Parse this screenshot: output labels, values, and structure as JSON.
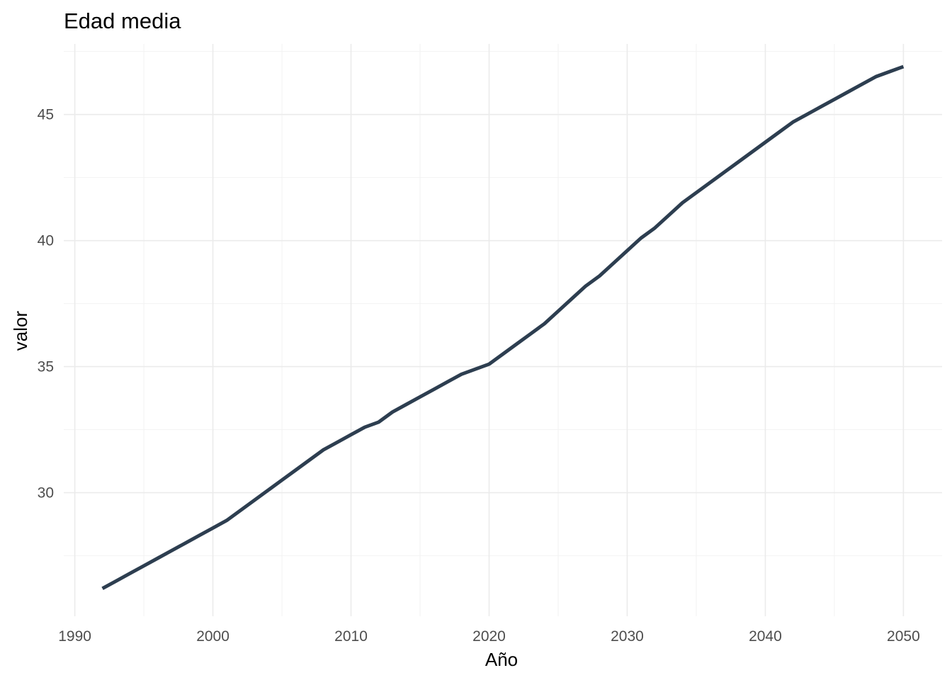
{
  "chart_data": {
    "type": "line",
    "title": "Edad media",
    "xlabel": "Año",
    "ylabel": "valor",
    "xlim": [
      1989.2,
      2052.8
    ],
    "ylim": [
      25.1,
      47.8
    ],
    "x_ticks": [
      1990,
      2000,
      2010,
      2020,
      2030,
      2040,
      2050
    ],
    "x_tick_labels": [
      "1990",
      "2000",
      "2010",
      "2020",
      "2030",
      "2040",
      "2050"
    ],
    "y_ticks": [
      30,
      35,
      40,
      45
    ],
    "y_tick_labels": [
      "30",
      "35",
      "40",
      "45"
    ],
    "x_minor_ticks": [
      1995,
      2005,
      2015,
      2025,
      2035,
      2045
    ],
    "y_minor_ticks": [
      27.5,
      32.5,
      37.5,
      42.5,
      47.5
    ],
    "grid": true,
    "legend": "none",
    "line_color": "#2d3e50",
    "series": [
      {
        "x": [
          1992,
          1993,
          1994,
          1995,
          1996,
          1997,
          1998,
          1999,
          2000,
          2001,
          2002,
          2003,
          2004,
          2005,
          2006,
          2007,
          2008,
          2009,
          2010,
          2011,
          2012,
          2013,
          2014,
          2015,
          2016,
          2017,
          2018,
          2019,
          2020,
          2021,
          2022,
          2023,
          2024,
          2025,
          2026,
          2027,
          2028,
          2029,
          2030,
          2031,
          2032,
          2033,
          2034,
          2035,
          2036,
          2037,
          2038,
          2039,
          2040,
          2041,
          2042,
          2043,
          2044,
          2045,
          2046,
          2047,
          2048,
          2049,
          2050
        ],
        "values": [
          26.2,
          26.5,
          26.8,
          27.1,
          27.4,
          27.7,
          28.0,
          28.3,
          28.6,
          28.9,
          29.3,
          29.7,
          30.1,
          30.5,
          30.9,
          31.3,
          31.7,
          32.0,
          32.3,
          32.6,
          32.8,
          33.2,
          33.5,
          33.8,
          34.1,
          34.4,
          34.7,
          34.9,
          35.1,
          35.5,
          35.9,
          36.3,
          36.7,
          37.2,
          37.7,
          38.2,
          38.6,
          39.1,
          39.6,
          40.1,
          40.5,
          41.0,
          41.5,
          41.9,
          42.3,
          42.7,
          43.1,
          43.5,
          43.9,
          44.3,
          44.7,
          45.0,
          45.3,
          45.6,
          45.9,
          46.2,
          46.5,
          46.7,
          46.9
        ]
      }
    ]
  }
}
